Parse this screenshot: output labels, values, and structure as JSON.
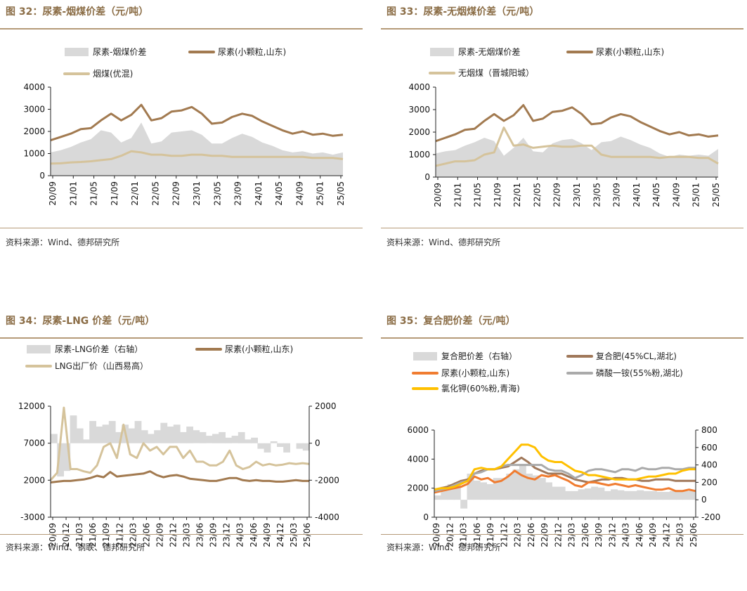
{
  "chart_data": [
    {
      "type": "line",
      "title": "图 32：尿素-烟煤价差（元/吨）",
      "source": "资料来源：Wind、德邦研究所",
      "x_ticks": [
        "20/09",
        "21/01",
        "21/05",
        "21/09",
        "22/01",
        "22/05",
        "22/09",
        "23/01",
        "23/05",
        "23/09",
        "24/01",
        "24/05",
        "24/09",
        "25/01",
        "25/05"
      ],
      "ylim": [
        0,
        4000
      ],
      "y_ticks": [
        "0",
        "1000",
        "2000",
        "3000",
        "4000"
      ],
      "series": [
        {
          "name": "尿素-烟煤价差",
          "kind": "area",
          "axis": "left",
          "color": "#D9D9D9",
          "values": [
            1050,
            1150,
            1300,
            1500,
            1650,
            2050,
            1950,
            1500,
            1700,
            2400,
            1450,
            1550,
            1950,
            2000,
            2050,
            1850,
            1450,
            1450,
            1700,
            1900,
            1750,
            1500,
            1350,
            1150,
            1050,
            1100,
            1000,
            1050,
            950,
            1050
          ]
        },
        {
          "name": "尿素(小颗粒,山东)",
          "kind": "line",
          "axis": "left",
          "color": "#A27A50",
          "values": [
            1600,
            1750,
            1900,
            2100,
            2150,
            2500,
            2800,
            2500,
            2750,
            3200,
            2500,
            2600,
            2900,
            2950,
            3100,
            2800,
            2350,
            2400,
            2650,
            2800,
            2700,
            2450,
            2250,
            2050,
            1900,
            2000,
            1850,
            1900,
            1800,
            1850
          ]
        },
        {
          "name": "烟煤(优混)",
          "kind": "line",
          "axis": "left",
          "color": "#D5C39B",
          "values": [
            550,
            560,
            600,
            620,
            650,
            700,
            750,
            900,
            1100,
            1050,
            950,
            950,
            900,
            900,
            950,
            950,
            900,
            900,
            850,
            850,
            850,
            850,
            850,
            850,
            850,
            850,
            800,
            800,
            800,
            750
          ]
        }
      ]
    },
    {
      "type": "line",
      "title": "图 33：尿素-无烟煤价差（元/吨）",
      "source": "资料来源：Wind、德邦研究所",
      "x_ticks": [
        "20/09",
        "21/01",
        "21/05",
        "21/09",
        "22/01",
        "22/05",
        "22/09",
        "23/01",
        "23/05",
        "23/09",
        "24/01",
        "24/05",
        "24/09",
        "25/01",
        "25/05"
      ],
      "ylim": [
        0,
        4000
      ],
      "y_ticks": [
        "0",
        "1000",
        "2000",
        "3000",
        "4000"
      ],
      "series": [
        {
          "name": "尿素-无烟煤价差",
          "kind": "area",
          "axis": "left",
          "color": "#D9D9D9",
          "values": [
            1050,
            1150,
            1200,
            1400,
            1550,
            1750,
            1600,
            950,
            1300,
            1750,
            1150,
            1100,
            1500,
            1650,
            1700,
            1500,
            1200,
            1550,
            1600,
            1800,
            1650,
            1450,
            1300,
            1050,
            900,
            1000,
            950,
            1000,
            950,
            1250
          ]
        },
        {
          "name": "尿素(小颗粒,山东)",
          "kind": "line",
          "axis": "left",
          "color": "#A27A50",
          "values": [
            1600,
            1750,
            1900,
            2100,
            2150,
            2500,
            2800,
            2500,
            2750,
            3200,
            2500,
            2600,
            2900,
            2950,
            3100,
            2800,
            2350,
            2400,
            2650,
            2800,
            2700,
            2450,
            2250,
            2050,
            1900,
            2000,
            1850,
            1900,
            1800,
            1850
          ]
        },
        {
          "name": "无烟煤（晋城阳城）",
          "kind": "line",
          "axis": "left",
          "color": "#D5C39B",
          "values": [
            500,
            600,
            700,
            700,
            750,
            1000,
            1100,
            2200,
            1400,
            1450,
            1300,
            1350,
            1400,
            1350,
            1350,
            1400,
            1400,
            1000,
            900,
            900,
            900,
            900,
            900,
            850,
            900,
            900,
            900,
            850,
            850,
            600
          ]
        }
      ]
    },
    {
      "type": "line",
      "title": "图 34：尿素-LNG 价差（元/吨）",
      "source": "资料来源：Wind、钢联、德邦研究所",
      "x_ticks": [
        "20/09",
        "20/12",
        "21/03",
        "21/06",
        "21/09",
        "21/12",
        "22/03",
        "22/06",
        "22/09",
        "22/12",
        "23/03",
        "23/06",
        "23/09",
        "23/12",
        "24/03",
        "24/06",
        "24/09",
        "24/12",
        "25/03",
        "25/06"
      ],
      "ylim": [
        -3000,
        12000
      ],
      "y_ticks": [
        "-3000",
        "2000",
        "7000",
        "12000"
      ],
      "y2lim": [
        -4000,
        2000
      ],
      "y2_ticks": [
        "-4000",
        "-2000",
        "0",
        "2000"
      ],
      "series": [
        {
          "name": "尿素-LNG价差（右轴）",
          "kind": "bars",
          "axis": "right",
          "color": "#D9D9D9",
          "values": [
            500,
            -1800,
            -1500,
            1500,
            800,
            200,
            1200,
            900,
            1000,
            1200,
            600,
            1000,
            800,
            1200,
            700,
            500,
            700,
            1100,
            900,
            1000,
            600,
            900,
            700,
            600,
            400,
            500,
            600,
            300,
            400,
            600,
            200,
            300,
            -300,
            -500,
            100,
            -200,
            -500,
            0,
            -300,
            -400
          ]
        },
        {
          "name": "尿素(小颗粒,山东)",
          "kind": "line",
          "axis": "left",
          "color": "#A27A50",
          "values": [
            1700,
            1800,
            1900,
            1900,
            2000,
            2100,
            2300,
            2600,
            2400,
            3100,
            2500,
            2600,
            2700,
            2800,
            2900,
            3200,
            2700,
            2400,
            2600,
            2700,
            2500,
            2200,
            2100,
            2000,
            1900,
            1900,
            2100,
            2300,
            2300,
            2000,
            1900,
            2000,
            1900,
            1900,
            1800,
            1800,
            1900,
            2000,
            1900,
            1900
          ]
        },
        {
          "name": "LNG出厂价（山西易高）",
          "kind": "line",
          "axis": "left",
          "color": "#D5C39B",
          "values": [
            2000,
            3000,
            11800,
            3500,
            3500,
            3200,
            3000,
            4000,
            6500,
            7000,
            5000,
            9500,
            5500,
            5000,
            7000,
            6000,
            6500,
            5500,
            6500,
            6500,
            5000,
            6000,
            4500,
            4500,
            4000,
            4000,
            4500,
            6000,
            4000,
            3500,
            3800,
            4500,
            4000,
            4200,
            4000,
            4100,
            4300,
            4200,
            4300,
            4200
          ]
        }
      ]
    },
    {
      "type": "line",
      "title": "图 35：复合肥价差（元/吨）",
      "source": "资料来源：Wind、德邦研究所",
      "x_ticks": [
        "20/09",
        "20/12",
        "21/03",
        "21/06",
        "21/09",
        "21/12",
        "22/03",
        "22/06",
        "22/09",
        "22/12",
        "23/03",
        "23/06",
        "23/09",
        "23/12",
        "24/03",
        "24/06",
        "24/09",
        "24/12",
        "25/03",
        "25/06"
      ],
      "ylim": [
        0,
        6000
      ],
      "y_ticks": [
        "0",
        "2000",
        "4000",
        "6000"
      ],
      "y2lim": [
        -200,
        800
      ],
      "y2_ticks": [
        "-200",
        "0",
        "200",
        "400",
        "600",
        "800"
      ],
      "series": [
        {
          "name": "复合肥价差（右轴）",
          "kind": "bars",
          "axis": "right",
          "color": "#D9D9D9",
          "values": [
            50,
            150,
            180,
            200,
            -100,
            300,
            220,
            200,
            180,
            250,
            250,
            300,
            350,
            400,
            300,
            280,
            250,
            200,
            150,
            150,
            100,
            100,
            120,
            130,
            150,
            140,
            100,
            120,
            110,
            100,
            100,
            110,
            100,
            100,
            90,
            90,
            100,
            100,
            100,
            110
          ]
        },
        {
          "name": "复合肥(45%CL,湖北)",
          "kind": "line",
          "axis": "left",
          "color": "#A0785A",
          "values": [
            1900,
            2000,
            2100,
            2300,
            2500,
            2600,
            3000,
            3200,
            3300,
            3300,
            3400,
            3500,
            3800,
            4100,
            3800,
            3400,
            3200,
            3000,
            3000,
            3000,
            2800,
            2600,
            2500,
            2400,
            2500,
            2600,
            2600,
            2700,
            2700,
            2600,
            2600,
            2500,
            2500,
            2600,
            2600,
            2600,
            2500,
            2500,
            2500,
            2500
          ]
        },
        {
          "name": "尿素(小颗粒,山东)",
          "kind": "line",
          "axis": "left",
          "color": "#F07C30",
          "values": [
            1700,
            1800,
            1900,
            2000,
            2100,
            2300,
            2800,
            2600,
            2700,
            2400,
            2500,
            2800,
            3200,
            2900,
            2700,
            2600,
            2900,
            2800,
            2900,
            2700,
            2500,
            2200,
            2100,
            2400,
            2400,
            2300,
            2200,
            2300,
            2200,
            2100,
            2200,
            2100,
            2000,
            1900,
            1900,
            2000,
            1800,
            1800,
            1900,
            1800
          ]
        },
        {
          "name": "磷酸一铵(55%粉,湖北)",
          "kind": "line",
          "axis": "left",
          "color": "#AAAAAA",
          "values": [
            1800,
            1900,
            2000,
            2200,
            2400,
            2500,
            3000,
            3100,
            3300,
            3300,
            3500,
            3600,
            3600,
            3600,
            3600,
            3600,
            3600,
            3300,
            3200,
            3200,
            3000,
            2700,
            2900,
            3200,
            3300,
            3300,
            3200,
            3100,
            3300,
            3300,
            3200,
            3400,
            3300,
            3300,
            3400,
            3400,
            3300,
            3300,
            3400,
            3400
          ]
        },
        {
          "name": "氯化钾(60%粉,青海)",
          "kind": "line",
          "axis": "left",
          "color": "#FFC000",
          "values": [
            1900,
            2000,
            2000,
            2100,
            2300,
            2500,
            3300,
            3400,
            3300,
            3300,
            3500,
            4000,
            4500,
            5000,
            5000,
            4800,
            4200,
            3900,
            3800,
            3800,
            3500,
            3200,
            3100,
            2900,
            2900,
            2800,
            2700,
            2600,
            2600,
            2600,
            2600,
            2700,
            2800,
            2800,
            2900,
            3000,
            3000,
            3200,
            3300,
            3300
          ]
        }
      ]
    }
  ]
}
